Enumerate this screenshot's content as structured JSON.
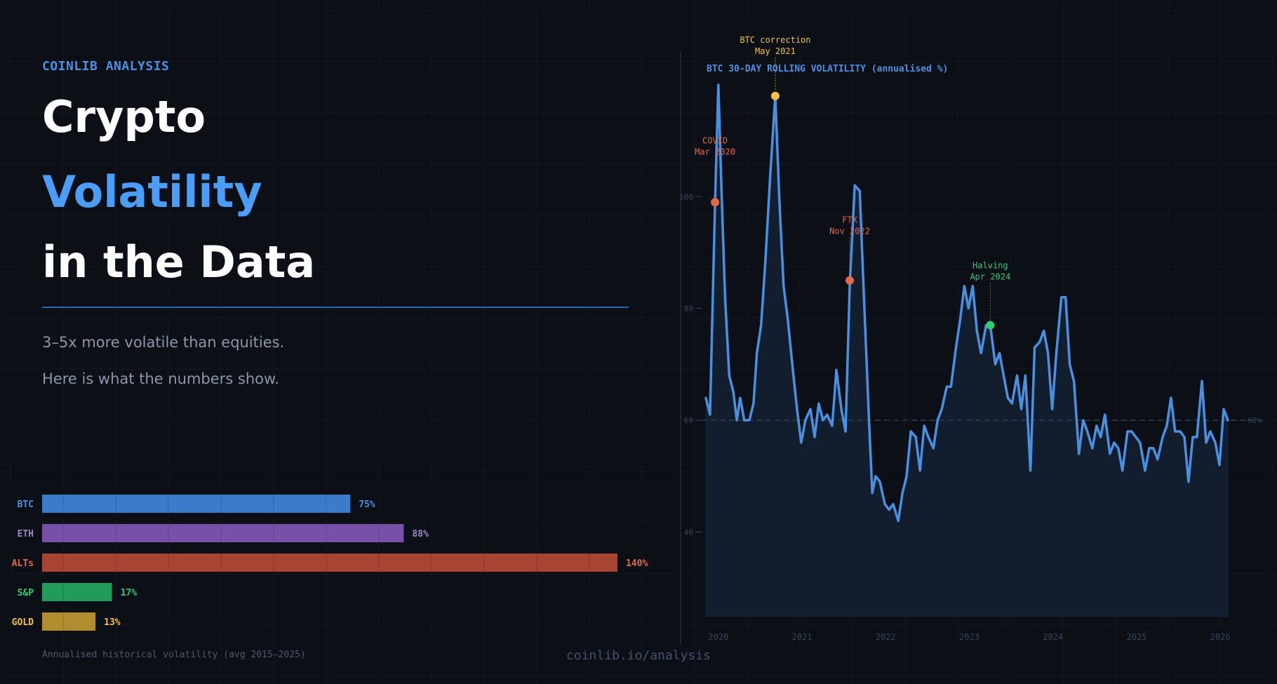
{
  "brand": "COINLIB ANALYSIS",
  "headline": {
    "line1": "Crypto",
    "line2": "Volatility",
    "line3": "in the Data"
  },
  "subtitle": {
    "line1": "3–5x more volatile than equities.",
    "line2": "Here is what the numbers show."
  },
  "footer": "coinlib.io/analysis",
  "colors": {
    "background": "#0c0f16",
    "accent": "#4a90e2",
    "line": "#4a90e2",
    "area": "#121d2e"
  },
  "chart_data": [
    {
      "type": "bar",
      "orientation": "horizontal",
      "caption": "Annualised historical volatility (avg 2015–2025)",
      "categories": [
        "BTC",
        "ETH",
        "ALTs",
        "S&P",
        "GOLD"
      ],
      "values": [
        75,
        88,
        140,
        17,
        13
      ],
      "value_labels": [
        "75%",
        "88%",
        "140%",
        "17%",
        "13%"
      ],
      "colors": [
        "#3b7bcc",
        "#7751a8",
        "#a84532",
        "#239b58",
        "#b18d30"
      ],
      "label_colors": [
        "#4a90e2",
        "#9a86c4",
        "#e06a4a",
        "#2ecc71",
        "#f0c040"
      ],
      "xlim": [
        0,
        140
      ]
    },
    {
      "type": "area",
      "title": "BTC 30-DAY ROLLING VOLATILITY (annualised %)",
      "xlim": [
        2019.8,
        2026.3
      ],
      "ylim": [
        25,
        125
      ],
      "yticks": [
        40,
        60,
        80,
        100
      ],
      "xticks": [
        2020,
        2021,
        2022,
        2023,
        2024,
        2025,
        2026
      ],
      "reference_line": {
        "y": 60,
        "label": "60%"
      },
      "series": [
        {
          "points": [
            [
              2019.85,
              64
            ],
            [
              2019.9,
              61
            ],
            [
              2019.96,
              99
            ],
            [
              2020.0,
              120
            ],
            [
              2020.04,
              100
            ],
            [
              2020.08,
              82
            ],
            [
              2020.13,
              68
            ],
            [
              2020.18,
              65
            ],
            [
              2020.22,
              60
            ],
            [
              2020.26,
              64
            ],
            [
              2020.31,
              60
            ],
            [
              2020.37,
              60
            ],
            [
              2020.42,
              63
            ],
            [
              2020.46,
              72
            ],
            [
              2020.51,
              77
            ],
            [
              2020.56,
              88
            ],
            [
              2020.62,
              104
            ],
            [
              2020.68,
              118
            ],
            [
              2020.73,
              99
            ],
            [
              2020.78,
              84
            ],
            [
              2020.83,
              78
            ],
            [
              2020.89,
              69
            ],
            [
              2020.94,
              62
            ],
            [
              2020.99,
              56
            ],
            [
              2021.04,
              60
            ],
            [
              2021.1,
              62
            ],
            [
              2021.15,
              57
            ],
            [
              2021.2,
              63
            ],
            [
              2021.25,
              60
            ],
            [
              2021.3,
              61
            ],
            [
              2021.36,
              59
            ],
            [
              2021.41,
              69
            ],
            [
              2021.47,
              62
            ],
            [
              2021.52,
              58
            ],
            [
              2021.57,
              84
            ],
            [
              2021.63,
              102
            ],
            [
              2021.69,
              101
            ],
            [
              2021.74,
              82
            ],
            [
              2021.8,
              60
            ],
            [
              2021.84,
              47
            ],
            [
              2021.88,
              50
            ],
            [
              2021.93,
              49
            ],
            [
              2021.99,
              45
            ],
            [
              2022.04,
              44
            ],
            [
              2022.09,
              45
            ],
            [
              2022.15,
              42
            ],
            [
              2022.2,
              47
            ],
            [
              2022.25,
              50
            ],
            [
              2022.3,
              58
            ],
            [
              2022.36,
              57
            ],
            [
              2022.41,
              51
            ],
            [
              2022.46,
              59
            ],
            [
              2022.51,
              57
            ],
            [
              2022.57,
              55
            ],
            [
              2022.62,
              60
            ],
            [
              2022.67,
              62
            ],
            [
              2022.73,
              66
            ],
            [
              2022.78,
              66
            ],
            [
              2022.84,
              73
            ],
            [
              2022.89,
              78
            ],
            [
              2022.94,
              84
            ],
            [
              2022.99,
              80
            ],
            [
              2023.04,
              84
            ],
            [
              2023.09,
              76
            ],
            [
              2023.14,
              72
            ],
            [
              2023.2,
              77
            ],
            [
              2023.25,
              77
            ],
            [
              2023.31,
              70
            ],
            [
              2023.36,
              72
            ],
            [
              2023.41,
              68
            ],
            [
              2023.46,
              64
            ],
            [
              2023.51,
              63
            ],
            [
              2023.57,
              68
            ],
            [
              2023.62,
              62
            ],
            [
              2023.67,
              68
            ],
            [
              2023.73,
              51
            ],
            [
              2023.78,
              73
            ],
            [
              2023.84,
              74
            ],
            [
              2023.89,
              76
            ],
            [
              2023.94,
              72
            ],
            [
              2023.99,
              62
            ],
            [
              2024.04,
              72
            ],
            [
              2024.1,
              82
            ],
            [
              2024.15,
              82
            ],
            [
              2024.2,
              70
            ],
            [
              2024.25,
              67
            ],
            [
              2024.31,
              54
            ],
            [
              2024.36,
              60
            ],
            [
              2024.41,
              58
            ],
            [
              2024.47,
              55
            ],
            [
              2024.52,
              59
            ],
            [
              2024.57,
              57
            ],
            [
              2024.62,
              61
            ],
            [
              2024.68,
              54
            ],
            [
              2024.73,
              56
            ],
            [
              2024.78,
              55
            ],
            [
              2024.83,
              51
            ],
            [
              2024.89,
              58
            ],
            [
              2024.94,
              58
            ],
            [
              2024.99,
              57
            ],
            [
              2025.04,
              56
            ],
            [
              2025.1,
              51
            ],
            [
              2025.15,
              55
            ],
            [
              2025.2,
              55
            ],
            [
              2025.25,
              53
            ],
            [
              2025.31,
              57
            ],
            [
              2025.36,
              59
            ],
            [
              2025.41,
              64
            ],
            [
              2025.46,
              58
            ],
            [
              2025.52,
              58
            ],
            [
              2025.57,
              57
            ],
            [
              2025.62,
              49
            ],
            [
              2025.67,
              57
            ],
            [
              2025.72,
              57
            ],
            [
              2025.78,
              67
            ],
            [
              2025.83,
              56
            ],
            [
              2025.88,
              58
            ],
            [
              2025.94,
              56
            ],
            [
              2025.99,
              52
            ],
            [
              2026.04,
              62
            ],
            [
              2026.09,
              60
            ]
          ]
        }
      ],
      "annotations": [
        {
          "x": 2019.96,
          "y": 99,
          "label": "COVID\nMar 2020",
          "color": "#e06a4a",
          "text_y": 109.5,
          "leader": false
        },
        {
          "x": 2020.68,
          "y": 118,
          "label": "BTC correction\nMay 2021",
          "color": "#f0c040",
          "text_y": 127.5,
          "leader": true
        },
        {
          "x": 2021.57,
          "y": 85,
          "label": "FTX\nNov 2022",
          "color": "#e06a4a",
          "text_y": 95.3,
          "leader": true
        },
        {
          "x": 2023.25,
          "y": 77,
          "label": "Halving\nApr 2024",
          "color": "#2ecc71",
          "text_y": 87.2,
          "leader": true
        }
      ]
    }
  ]
}
